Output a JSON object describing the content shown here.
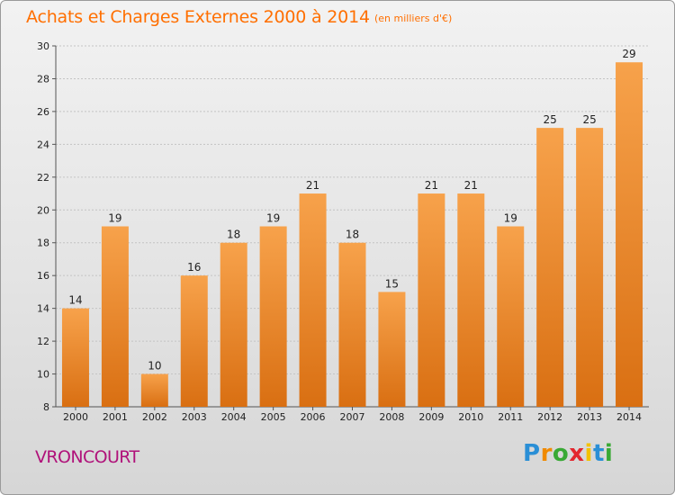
{
  "header": {
    "title": "Achats et Charges Externes 2000 à 2014",
    "subtitle": "(en milliers d'€)"
  },
  "footer": {
    "commune": "VRONCOURT",
    "logo_letters": [
      {
        "char": "P",
        "color": "#2a8fd6"
      },
      {
        "char": "r",
        "color": "#f08a00"
      },
      {
        "char": "o",
        "color": "#39a935"
      },
      {
        "char": "x",
        "color": "#e3262e"
      },
      {
        "char": "i",
        "color": "#f3c200"
      },
      {
        "char": "t",
        "color": "#2a8fd6"
      },
      {
        "char": "i",
        "color": "#39a935"
      }
    ]
  },
  "chart_data": {
    "type": "bar",
    "categories": [
      "2000",
      "2001",
      "2002",
      "2003",
      "2004",
      "2005",
      "2006",
      "2007",
      "2008",
      "2009",
      "2010",
      "2011",
      "2012",
      "2013",
      "2014"
    ],
    "values": [
      14,
      19,
      10,
      16,
      18,
      19,
      21,
      18,
      15,
      21,
      21,
      19,
      25,
      25,
      29
    ],
    "ylim": [
      8,
      30
    ],
    "yticks": [
      8,
      10,
      12,
      14,
      16,
      18,
      20,
      22,
      24,
      26,
      28,
      30
    ],
    "grid": true,
    "bar_color_top": "#f7a24b",
    "bar_color_bottom": "#d96f12"
  }
}
